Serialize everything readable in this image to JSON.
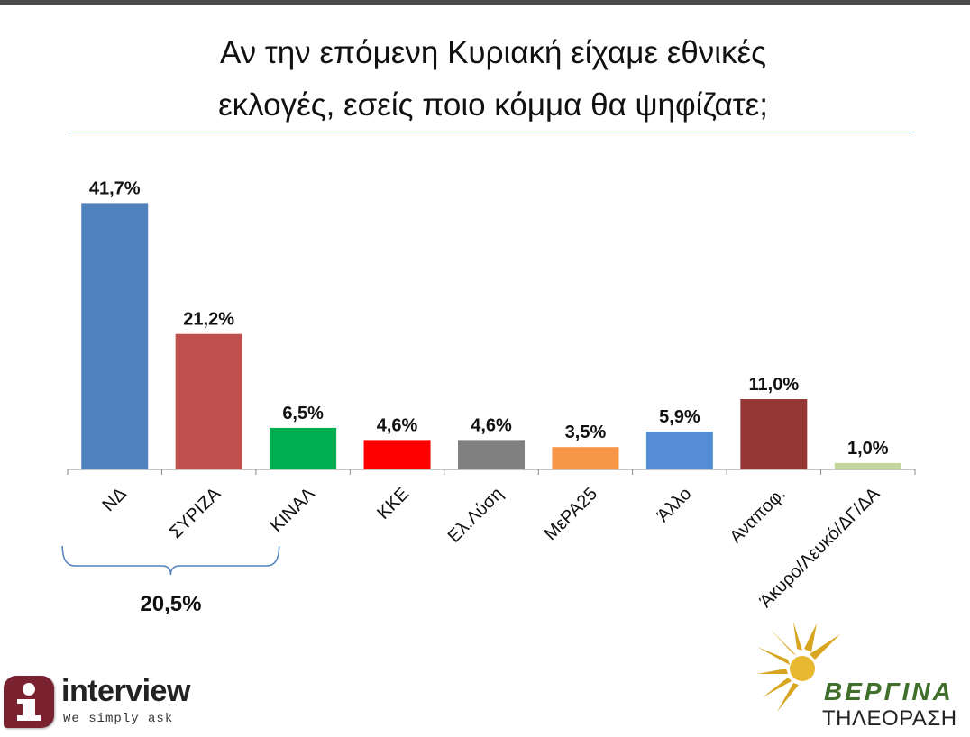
{
  "title_line1": "Αν την επόμενη Κυριακή είχαμε εθνικές",
  "title_line2": "εκλογές, εσείς ποιο κόμμα θα ψηφίζατε;",
  "chart_data": {
    "type": "bar",
    "categories": [
      "ΝΔ",
      "ΣΥΡΙΖΑ",
      "ΚΙΝΑΛ",
      "ΚΚΕ",
      "Ελ.Λύση",
      "ΜεΡΑ25",
      "Άλλο",
      "Αναποφ.",
      "Άκυρο/Λευκό/ΔΓ/ΔΑ"
    ],
    "values": [
      41.7,
      21.2,
      6.5,
      4.6,
      4.6,
      3.5,
      5.9,
      11.0,
      1.0
    ],
    "value_labels": [
      "41,7%",
      "21,2%",
      "6,5%",
      "4,6%",
      "4,6%",
      "3,5%",
      "5,9%",
      "11,0%",
      "1,0%"
    ],
    "colors": [
      "#4f81bd",
      "#c0504d",
      "#00b050",
      "#ff0000",
      "#808080",
      "#f79646",
      "#558ed5",
      "#953735",
      "#c3d69b"
    ],
    "ylim": [
      0,
      45
    ],
    "grid": false,
    "annotation": {
      "text": "20,5%",
      "spans": [
        "ΝΔ",
        "ΣΥΡΙΖΑ"
      ]
    }
  },
  "logos": {
    "interview": {
      "name": "interview",
      "tagline": "We simply ask",
      "icon": "info-i-icon",
      "color": "#7b2230"
    },
    "vergina": {
      "name": "ΒΕΡΓΙΝΑ",
      "subtitle": "ΤΗΛΕΟΡΑΣΗ",
      "icon": "vergina-sun-icon",
      "color": "#3f6f2a"
    }
  }
}
